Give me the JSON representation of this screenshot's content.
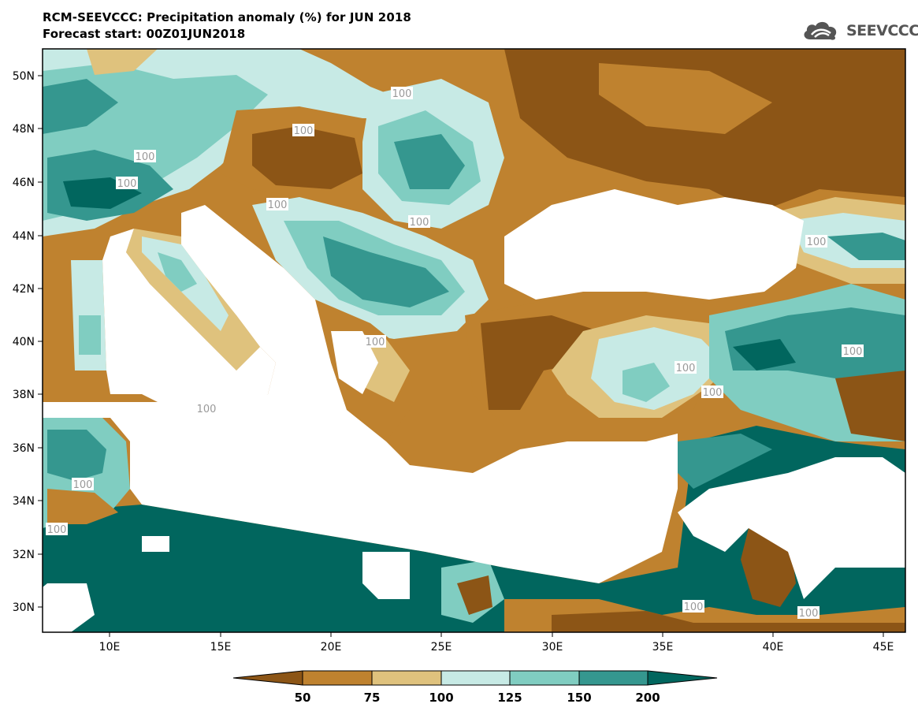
{
  "header": {
    "title": "RCM-SEEVCCC: Precipitation anomaly (%) for JUN 2018",
    "subtitle": "Forecast start: 00Z01JUN2018"
  },
  "logo": {
    "text": "SEEVCCC"
  },
  "map": {
    "lat_labels": [
      "50N",
      "48N",
      "46N",
      "44N",
      "42N",
      "40N",
      "38N",
      "36N",
      "34N",
      "32N",
      "30N"
    ],
    "lon_labels": [
      "10E",
      "15E",
      "20E",
      "25E",
      "30E",
      "35E",
      "40E",
      "45E"
    ],
    "contour_label": "100"
  },
  "colorbar": {
    "ticks": [
      "50",
      "75",
      "100",
      "125",
      "150",
      "200"
    ],
    "colors": [
      "#8c5516",
      "#bf822f",
      "#dfc27d",
      "#c7eae5",
      "#80cdc1",
      "#35978f",
      "#01665e"
    ]
  },
  "chart_data": {
    "type": "heatmap",
    "title": "RCM-SEEVCCC: Precipitation anomaly (%) for JUN 2018",
    "subtitle": "Forecast start: 00Z01JUN2018",
    "x_ticks": [
      "10E",
      "15E",
      "20E",
      "25E",
      "30E",
      "35E",
      "40E",
      "45E"
    ],
    "y_ticks": [
      "50N",
      "48N",
      "46N",
      "44N",
      "42N",
      "40N",
      "38N",
      "36N",
      "34N",
      "32N",
      "30N"
    ],
    "xlim": [
      7,
      46
    ],
    "ylim": [
      29,
      51
    ],
    "levels": [
      50,
      75,
      100,
      125,
      150,
      200
    ],
    "level_colors": [
      "#8c5516",
      "#bf822f",
      "#dfc27d",
      "#c7eae5",
      "#80cdc1",
      "#35978f",
      "#01665e"
    ]
  }
}
